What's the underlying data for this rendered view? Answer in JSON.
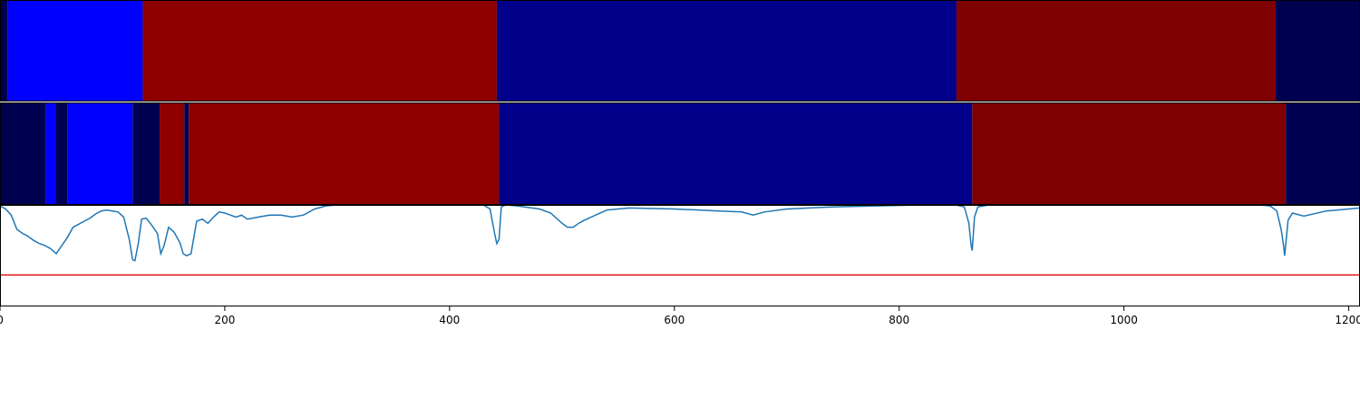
{
  "chart_data": {
    "type": "heatmap",
    "xlim": [
      0,
      1210
    ],
    "x_ticks": [
      0,
      200,
      400,
      600,
      800,
      1000,
      1200
    ],
    "x_tick_labels": [
      "0",
      "200",
      "400",
      "600",
      "800",
      "1000",
      "1200"
    ],
    "segment_rows": [
      {
        "segments": [
          {
            "start": 0,
            "end": 7,
            "color": "#000050"
          },
          {
            "start": 7,
            "end": 127,
            "color": "#0000ff"
          },
          {
            "start": 127,
            "end": 442,
            "color": "#8e0000"
          },
          {
            "start": 442,
            "end": 851,
            "color": "#00008b"
          },
          {
            "start": 851,
            "end": 1135,
            "color": "#7f0000"
          },
          {
            "start": 1135,
            "end": 1210,
            "color": "#000050"
          }
        ]
      },
      {
        "segments": [
          {
            "start": 0,
            "end": 41,
            "color": "#000050"
          },
          {
            "start": 41,
            "end": 50,
            "color": "#0000ff"
          },
          {
            "start": 50,
            "end": 60,
            "color": "#000050"
          },
          {
            "start": 60,
            "end": 118,
            "color": "#0000ff"
          },
          {
            "start": 118,
            "end": 142,
            "color": "#000050"
          },
          {
            "start": 142,
            "end": 164,
            "color": "#8e0000"
          },
          {
            "start": 164,
            "end": 168,
            "color": "#000050"
          },
          {
            "start": 168,
            "end": 444,
            "color": "#8e0000"
          },
          {
            "start": 444,
            "end": 865,
            "color": "#00008b"
          },
          {
            "start": 865,
            "end": 1144,
            "color": "#7f0000"
          },
          {
            "start": 1144,
            "end": 1210,
            "color": "#000050"
          }
        ]
      }
    ],
    "line_panel": {
      "ylim": [
        0,
        1
      ],
      "threshold": 0.31,
      "threshold_color": "#e41a1c",
      "line_color": "#1f77b4",
      "series": {
        "x": [
          0,
          5,
          10,
          15,
          20,
          25,
          30,
          35,
          40,
          45,
          50,
          55,
          60,
          65,
          70,
          75,
          80,
          85,
          90,
          95,
          100,
          105,
          110,
          115,
          118,
          120,
          123,
          126,
          130,
          135,
          140,
          143,
          146,
          150,
          155,
          160,
          163,
          166,
          170,
          175,
          180,
          185,
          190,
          195,
          200,
          205,
          210,
          215,
          220,
          230,
          240,
          250,
          260,
          270,
          280,
          290,
          300,
          320,
          360,
          400,
          430,
          436,
          440,
          442,
          444,
          446,
          450,
          460,
          480,
          490,
          500,
          505,
          510,
          515,
          520,
          530,
          540,
          560,
          600,
          640,
          660,
          670,
          680,
          700,
          740,
          780,
          820,
          850,
          858,
          862,
          864,
          865,
          867,
          870,
          880,
          920,
          1000,
          1080,
          1120,
          1130,
          1136,
          1140,
          1142,
          1143,
          1144,
          1146,
          1150,
          1160,
          1180,
          1210
        ],
        "y": [
          0.99,
          0.96,
          0.9,
          0.76,
          0.72,
          0.69,
          0.65,
          0.62,
          0.6,
          0.57,
          0.52,
          0.6,
          0.68,
          0.78,
          0.81,
          0.84,
          0.87,
          0.91,
          0.94,
          0.95,
          0.94,
          0.93,
          0.88,
          0.66,
          0.46,
          0.45,
          0.62,
          0.86,
          0.87,
          0.8,
          0.72,
          0.52,
          0.6,
          0.78,
          0.73,
          0.63,
          0.52,
          0.5,
          0.52,
          0.84,
          0.86,
          0.82,
          0.88,
          0.93,
          0.92,
          0.9,
          0.88,
          0.9,
          0.86,
          0.88,
          0.9,
          0.9,
          0.88,
          0.9,
          0.96,
          0.99,
          1.0,
          1.0,
          1.0,
          1.0,
          1.0,
          0.96,
          0.72,
          0.62,
          0.66,
          0.98,
          1.0,
          0.99,
          0.96,
          0.92,
          0.82,
          0.78,
          0.78,
          0.82,
          0.85,
          0.9,
          0.95,
          0.97,
          0.96,
          0.94,
          0.93,
          0.9,
          0.93,
          0.96,
          0.98,
          0.99,
          1.0,
          1.0,
          0.98,
          0.82,
          0.6,
          0.55,
          0.88,
          0.98,
          1.0,
          1.0,
          1.0,
          1.0,
          1.0,
          0.99,
          0.94,
          0.75,
          0.6,
          0.5,
          0.62,
          0.85,
          0.92,
          0.89,
          0.94,
          0.97
        ]
      }
    }
  }
}
